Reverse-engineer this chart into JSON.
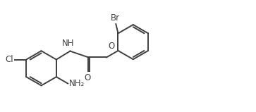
{
  "bg_color": "#ffffff",
  "line_color": "#404040",
  "text_color": "#404040",
  "line_width": 1.4,
  "font_size": 8.5,
  "figsize": [
    3.63,
    1.59
  ],
  "dpi": 100,
  "xlim": [
    0,
    11
  ],
  "ylim": [
    -2.2,
    2.8
  ]
}
